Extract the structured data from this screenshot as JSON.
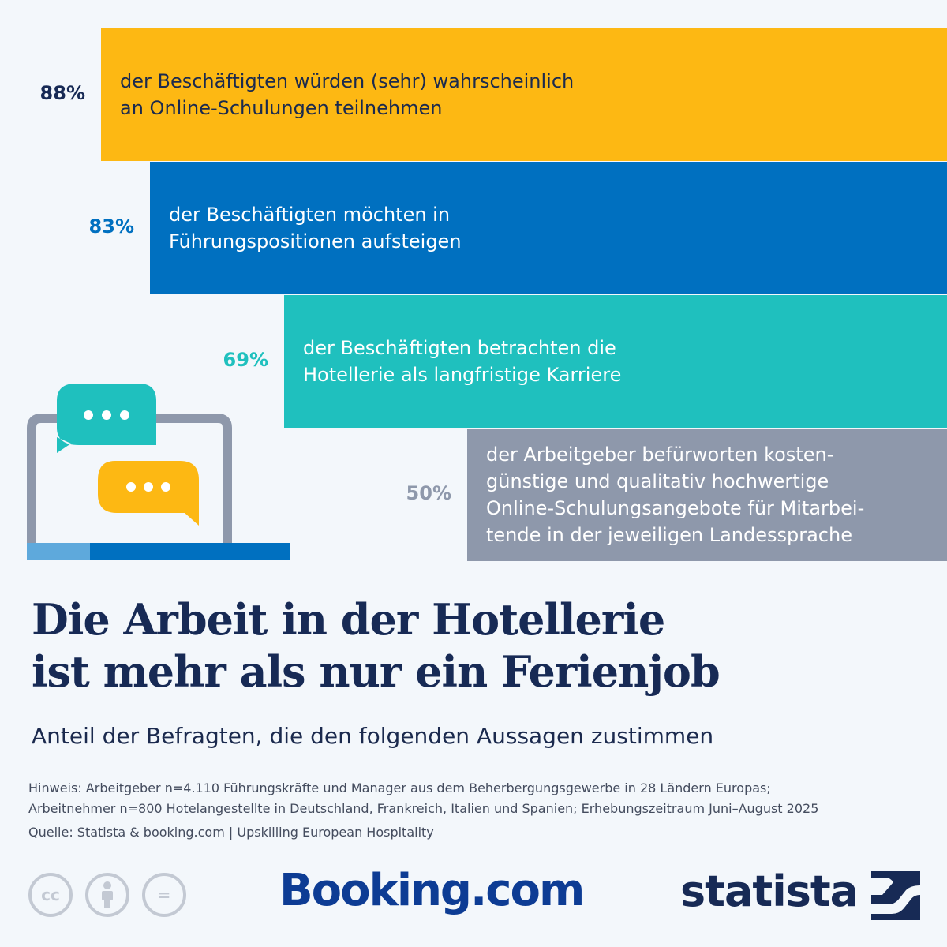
{
  "chart_data": {
    "type": "bar",
    "title": "Die Arbeit in der Hotellerie\nist mehr als nur ein Ferienjob",
    "subtitle": "Anteil der Befragten, die den folgenden Aussagen zustimmen",
    "series": [
      {
        "value": 88,
        "label": "88%",
        "text": "der Beschäftigten würden (sehr) wahrscheinlich\nan Online-Schulungen teilnehmen",
        "color": "#fdb813"
      },
      {
        "value": 83,
        "label": "83%",
        "text": "der Beschäftigten möchten in\nFührungspositionen aufsteigen",
        "color": "#0070c0"
      },
      {
        "value": 69,
        "label": "69%",
        "text": "der Beschäftigten betrachten die\nHotellerie als langfristige Karriere",
        "color": "#1fc0be"
      },
      {
        "value": 50,
        "label": "50%",
        "text": "der Arbeitgeber befürworten kosten-\ngünstige und qualitativ hochwertige\nOnline-Schulungsangebote für Mitarbei-\ntende in der jeweiligen Landessprache",
        "color": "#8e98ab"
      }
    ],
    "label_colors": [
      "#172a55",
      "#0070c0",
      "#1fc0be",
      "#8e98ab"
    ]
  },
  "notes": {
    "hinweis_1": "Hinweis: Arbeitgeber n=4.110 Führungskräfte und Manager aus dem Beherbergungsgewerbe in 28 Ländern Europas;",
    "hinweis_2": "Arbeitnehmer n=800 Hotelangestellte in Deutschland, Frankreich, Italien und Spanien; Erhebungszeitraum Juni–August 2025",
    "quelle": "Quelle: Statista & booking.com | Upskilling European Hospitality"
  },
  "logos": {
    "booking": "Booking.com",
    "statista": "statista",
    "cc_icons": [
      "cc-icon",
      "by-icon",
      "nd-icon"
    ],
    "cc_text": "cc",
    "nd_text": "="
  },
  "icon": {
    "name": "laptop-chat-icon",
    "colors": {
      "frame": "#8e98ab",
      "bubble1": "#1fc0be",
      "bubble2": "#fdb813",
      "base_light": "#5ea9dc",
      "base_dark": "#0070c0"
    }
  }
}
